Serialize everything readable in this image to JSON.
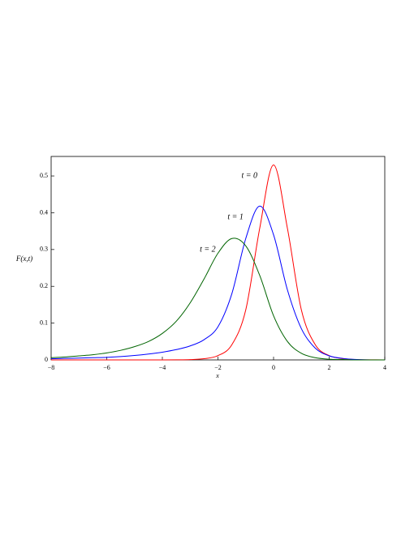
{
  "chart_data": {
    "type": "line",
    "y_label": "F(x,t)",
    "x_label": "x",
    "x": [
      -8,
      -7.5,
      -7,
      -6.5,
      -6,
      -5.5,
      -5,
      -4.5,
      -4,
      -3.5,
      -3,
      -2.5,
      -2,
      -1.5,
      -1,
      -0.5,
      0,
      0.5,
      1,
      1.5,
      2,
      2.5,
      3,
      3.5,
      4
    ],
    "series": [
      {
        "name": "t = 0",
        "color": "#ff0000",
        "values": [
          0,
          0,
          0,
          0,
          0,
          0,
          0,
          0,
          0,
          0.0003,
          0.0009,
          0.0032,
          0.0116,
          0.0413,
          0.136,
          0.357,
          0.53,
          0.357,
          0.136,
          0.0413,
          0.0116,
          0.0032,
          0.0009,
          0.0003,
          0
        ]
      },
      {
        "name": "t = 1",
        "color": "#0000ff",
        "values": [
          0.003,
          0.004,
          0.005,
          0.006,
          0.007,
          0.009,
          0.012,
          0.016,
          0.021,
          0.028,
          0.038,
          0.055,
          0.09,
          0.18,
          0.33,
          0.418,
          0.34,
          0.19,
          0.085,
          0.032,
          0.011,
          0.004,
          0.001,
          0,
          0
        ]
      },
      {
        "name": "t = 2",
        "color": "#006400",
        "values": [
          0.006,
          0.008,
          0.011,
          0.014,
          0.019,
          0.026,
          0.036,
          0.05,
          0.072,
          0.105,
          0.155,
          0.22,
          0.29,
          0.33,
          0.31,
          0.23,
          0.12,
          0.05,
          0.018,
          0.006,
          0.002,
          0.001,
          0,
          0,
          0
        ]
      }
    ],
    "xlim": [
      -8,
      4
    ],
    "ylim": [
      0,
      0.553
    ],
    "xticks": [
      {
        "value": -8,
        "label": "−8"
      },
      {
        "value": -6,
        "label": "−6"
      },
      {
        "value": -4,
        "label": "−4"
      },
      {
        "value": -2,
        "label": "−2"
      },
      0,
      2,
      4
    ],
    "yticks": [
      0,
      0.1,
      0.2,
      0.3,
      0.4,
      0.5
    ],
    "grid": false
  }
}
